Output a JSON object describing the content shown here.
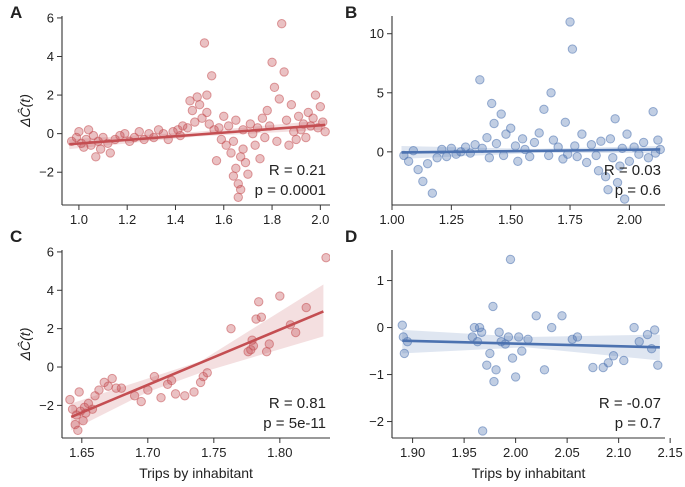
{
  "figure": {
    "ylabel_main": "ΔĈ(t)",
    "xlabel": "Trips by inhabitant",
    "colors": {
      "red": "#c44e52",
      "blue": "#4c72b0",
      "axis": "#333333"
    }
  },
  "chart_data": [
    {
      "panel": "A",
      "type": "scatter",
      "color": "#c44e52",
      "xlim": [
        0.93,
        2.04
      ],
      "ylim": [
        -3.7,
        6.1
      ],
      "xticks": [
        1.0,
        1.2,
        1.4,
        1.6,
        1.8,
        2.0
      ],
      "xtick_labels": [
        "1.0",
        "1.2",
        "1.4",
        "1.6",
        "1.8",
        "2.0"
      ],
      "yticks": [
        -2,
        0,
        2,
        4,
        6
      ],
      "ytick_labels": [
        "−2",
        "0",
        "2",
        "4",
        "6"
      ],
      "ylabel": "ΔĈ(t)",
      "xlabel": "",
      "fit": {
        "x": [
          0.96,
          2.02
        ],
        "y": [
          -0.55,
          0.45
        ]
      },
      "band": {
        "x": [
          0.96,
          1.49,
          2.02
        ],
        "lower": [
          -0.8,
          -0.15,
          0.2
        ],
        "upper": [
          -0.3,
          0.1,
          0.7
        ]
      },
      "stat_r": "R = 0.21",
      "stat_p": "p = 0.0001",
      "points": [
        [
          0.97,
          -0.4
        ],
        [
          0.99,
          -0.2
        ],
        [
          1.0,
          0.1
        ],
        [
          1.01,
          -0.5
        ],
        [
          1.02,
          -0.7
        ],
        [
          1.03,
          -0.3
        ],
        [
          1.04,
          0.2
        ],
        [
          1.05,
          -0.6
        ],
        [
          1.06,
          -0.1
        ],
        [
          1.07,
          -1.2
        ],
        [
          1.08,
          -0.4
        ],
        [
          1.09,
          -0.8
        ],
        [
          1.1,
          -0.2
        ],
        [
          1.12,
          -0.5
        ],
        [
          1.13,
          -1.0
        ],
        [
          1.15,
          -0.3
        ],
        [
          1.17,
          -0.1
        ],
        [
          1.19,
          0.0
        ],
        [
          1.21,
          -0.4
        ],
        [
          1.23,
          -0.2
        ],
        [
          1.25,
          0.1
        ],
        [
          1.27,
          -0.3
        ],
        [
          1.29,
          0.0
        ],
        [
          1.31,
          -0.2
        ],
        [
          1.33,
          0.2
        ],
        [
          1.35,
          0.0
        ],
        [
          1.37,
          -0.3
        ],
        [
          1.39,
          0.1
        ],
        [
          1.41,
          0.2
        ],
        [
          1.42,
          -0.1
        ],
        [
          1.43,
          0.4
        ],
        [
          1.45,
          0.3
        ],
        [
          1.46,
          1.7
        ],
        [
          1.47,
          1.2
        ],
        [
          1.48,
          0.6
        ],
        [
          1.49,
          1.9
        ],
        [
          1.5,
          1.5
        ],
        [
          1.51,
          0.8
        ],
        [
          1.52,
          4.7
        ],
        [
          1.53,
          1.1
        ],
        [
          1.53,
          2.0
        ],
        [
          1.54,
          0.5
        ],
        [
          1.55,
          3.0
        ],
        [
          1.56,
          0.2
        ],
        [
          1.57,
          -1.4
        ],
        [
          1.58,
          0.3
        ],
        [
          1.59,
          -0.3
        ],
        [
          1.6,
          0.9
        ],
        [
          1.61,
          -0.6
        ],
        [
          1.62,
          0.4
        ],
        [
          1.63,
          -1.0
        ],
        [
          1.64,
          -2.2
        ],
        [
          1.64,
          -0.4
        ],
        [
          1.65,
          -1.8
        ],
        [
          1.65,
          0.7
        ],
        [
          1.66,
          -2.6
        ],
        [
          1.66,
          -3.3
        ],
        [
          1.67,
          -1.2
        ],
        [
          1.67,
          -2.9
        ],
        [
          1.68,
          -0.8
        ],
        [
          1.68,
          0.2
        ],
        [
          1.69,
          -1.5
        ],
        [
          1.7,
          -2.1
        ],
        [
          1.71,
          0.5
        ],
        [
          1.72,
          0.0
        ],
        [
          1.73,
          -0.6
        ],
        [
          1.74,
          0.3
        ],
        [
          1.75,
          -1.3
        ],
        [
          1.76,
          0.8
        ],
        [
          1.77,
          -0.2
        ],
        [
          1.78,
          1.2
        ],
        [
          1.79,
          0.4
        ],
        [
          1.8,
          3.7
        ],
        [
          1.81,
          2.4
        ],
        [
          1.82,
          -0.4
        ],
        [
          1.83,
          1.8
        ],
        [
          1.84,
          5.7
        ],
        [
          1.85,
          3.2
        ],
        [
          1.86,
          0.7
        ],
        [
          1.87,
          -0.6
        ],
        [
          1.88,
          1.5
        ],
        [
          1.89,
          0.1
        ],
        [
          1.9,
          -0.3
        ],
        [
          1.91,
          0.9
        ],
        [
          1.92,
          0.2
        ],
        [
          1.93,
          0.5
        ],
        [
          1.94,
          -0.2
        ],
        [
          1.95,
          1.1
        ],
        [
          1.96,
          0.4
        ],
        [
          1.97,
          0.8
        ],
        [
          1.98,
          2.0
        ],
        [
          1.99,
          0.3
        ],
        [
          2.0,
          1.4
        ],
        [
          2.01,
          0.6
        ],
        [
          2.02,
          0.1
        ]
      ]
    },
    {
      "panel": "B",
      "type": "scatter",
      "color": "#4c72b0",
      "xlim": [
        1.0,
        2.15
      ],
      "ylim": [
        -4.5,
        11.5
      ],
      "xticks": [
        1.0,
        1.25,
        1.5,
        1.75,
        2.0
      ],
      "xtick_labels": [
        "1.00",
        "1.25",
        "1.50",
        "1.75",
        "2.00"
      ],
      "yticks": [
        0,
        5,
        10
      ],
      "ytick_labels": [
        "0",
        "5",
        "10"
      ],
      "ylabel": "",
      "xlabel": "",
      "fit": {
        "x": [
          1.04,
          2.13
        ],
        "y": [
          -0.05,
          0.2
        ]
      },
      "band": {
        "x": [
          1.04,
          1.6,
          2.13
        ],
        "lower": [
          -0.6,
          -0.1,
          -0.1
        ],
        "upper": [
          0.5,
          0.25,
          0.5
        ]
      },
      "stat_r": "R = 0.03",
      "stat_p": "p = 0.6",
      "points": [
        [
          1.05,
          -0.3
        ],
        [
          1.07,
          -0.8
        ],
        [
          1.09,
          0.1
        ],
        [
          1.11,
          -1.5
        ],
        [
          1.13,
          -2.5
        ],
        [
          1.15,
          -1.0
        ],
        [
          1.17,
          -3.5
        ],
        [
          1.19,
          -0.5
        ],
        [
          1.21,
          0.2
        ],
        [
          1.23,
          -0.4
        ],
        [
          1.25,
          0.3
        ],
        [
          1.27,
          -0.2
        ],
        [
          1.29,
          0.0
        ],
        [
          1.31,
          0.4
        ],
        [
          1.33,
          -0.1
        ],
        [
          1.35,
          0.6
        ],
        [
          1.37,
          6.1
        ],
        [
          1.38,
          0.3
        ],
        [
          1.4,
          1.2
        ],
        [
          1.41,
          -0.5
        ],
        [
          1.42,
          4.1
        ],
        [
          1.43,
          2.4
        ],
        [
          1.44,
          0.7
        ],
        [
          1.46,
          3.2
        ],
        [
          1.47,
          -0.3
        ],
        [
          1.48,
          1.5
        ],
        [
          1.5,
          2.0
        ],
        [
          1.52,
          0.5
        ],
        [
          1.53,
          -0.8
        ],
        [
          1.55,
          1.1
        ],
        [
          1.56,
          0.2
        ],
        [
          1.58,
          -0.4
        ],
        [
          1.6,
          0.8
        ],
        [
          1.62,
          1.6
        ],
        [
          1.64,
          3.6
        ],
        [
          1.66,
          -0.3
        ],
        [
          1.67,
          5.0
        ],
        [
          1.68,
          1.0
        ],
        [
          1.7,
          0.4
        ],
        [
          1.72,
          -0.6
        ],
        [
          1.73,
          2.5
        ],
        [
          1.74,
          -0.2
        ],
        [
          1.75,
          11.0
        ],
        [
          1.76,
          8.7
        ],
        [
          1.77,
          0.5
        ],
        [
          1.78,
          -0.4
        ],
        [
          1.8,
          1.5
        ],
        [
          1.82,
          -0.9
        ],
        [
          1.84,
          0.6
        ],
        [
          1.86,
          -0.3
        ],
        [
          1.87,
          -1.6
        ],
        [
          1.88,
          0.9
        ],
        [
          1.9,
          -2.1
        ],
        [
          1.91,
          -3.2
        ],
        [
          1.92,
          1.1
        ],
        [
          1.93,
          -0.5
        ],
        [
          1.94,
          2.8
        ],
        [
          1.95,
          -2.6
        ],
        [
          1.96,
          -1.2
        ],
        [
          1.97,
          0.3
        ],
        [
          1.98,
          -4.0
        ],
        [
          1.99,
          1.5
        ],
        [
          2.0,
          -0.8
        ],
        [
          2.02,
          0.4
        ],
        [
          2.04,
          -0.2
        ],
        [
          2.06,
          0.8
        ],
        [
          2.08,
          -0.5
        ],
        [
          2.1,
          3.4
        ],
        [
          2.11,
          -0.1
        ],
        [
          2.12,
          1.0
        ],
        [
          2.13,
          0.2
        ]
      ]
    },
    {
      "panel": "C",
      "type": "scatter",
      "color": "#c44e52",
      "xlim": [
        1.635,
        1.838
      ],
      "ylim": [
        -3.7,
        6.1
      ],
      "xticks": [
        1.65,
        1.7,
        1.75,
        1.8
      ],
      "xtick_labels": [
        "1.65",
        "1.70",
        "1.75",
        "1.80"
      ],
      "yticks": [
        -2,
        0,
        2,
        4,
        6
      ],
      "ytick_labels": [
        "−2",
        "0",
        "2",
        "4",
        "6"
      ],
      "ylabel": "ΔĈ(t)",
      "xlabel": "Trips by inhabitant",
      "fit": {
        "x": [
          1.642,
          1.833
        ],
        "y": [
          -2.6,
          2.9
        ]
      },
      "band": {
        "x": [
          1.642,
          1.7,
          1.74,
          1.833
        ],
        "lower": [
          -3.3,
          -1.3,
          -0.3,
          1.6
        ],
        "upper": [
          -1.9,
          -0.6,
          0.3,
          4.3
        ]
      },
      "stat_r": "R = 0.81",
      "stat_p": "p = 5e-11",
      "points": [
        [
          1.641,
          -1.7
        ],
        [
          1.643,
          -2.2
        ],
        [
          1.645,
          -3.0
        ],
        [
          1.646,
          -2.5
        ],
        [
          1.647,
          -3.3
        ],
        [
          1.648,
          -1.3
        ],
        [
          1.649,
          -2.3
        ],
        [
          1.651,
          -2.8
        ],
        [
          1.652,
          -2.1
        ],
        [
          1.653,
          -2.4
        ],
        [
          1.655,
          -1.9
        ],
        [
          1.658,
          -2.2
        ],
        [
          1.66,
          -1.5
        ],
        [
          1.663,
          -1.2
        ],
        [
          1.667,
          -0.8
        ],
        [
          1.67,
          -1.0
        ],
        [
          1.673,
          -0.6
        ],
        [
          1.676,
          -1.1
        ],
        [
          1.68,
          -1.1
        ],
        [
          1.69,
          -1.5
        ],
        [
          1.695,
          -1.8
        ],
        [
          1.7,
          -1.2
        ],
        [
          1.705,
          -0.5
        ],
        [
          1.71,
          -1.6
        ],
        [
          1.715,
          -0.9
        ],
        [
          1.718,
          -0.7
        ],
        [
          1.721,
          -1.4
        ],
        [
          1.728,
          -1.5
        ],
        [
          1.735,
          -1.3
        ],
        [
          1.74,
          -0.8
        ],
        [
          1.742,
          -0.5
        ],
        [
          1.745,
          -0.3
        ],
        [
          1.763,
          2.0
        ],
        [
          1.776,
          0.8
        ],
        [
          1.778,
          0.9
        ],
        [
          1.779,
          1.4
        ],
        [
          1.78,
          1.1
        ],
        [
          1.782,
          2.5
        ],
        [
          1.784,
          3.4
        ],
        [
          1.786,
          2.6
        ],
        [
          1.79,
          0.8
        ],
        [
          1.792,
          1.2
        ],
        [
          1.8,
          3.7
        ],
        [
          1.808,
          2.2
        ],
        [
          1.812,
          1.8
        ],
        [
          1.82,
          3.1
        ],
        [
          1.835,
          5.7
        ]
      ]
    },
    {
      "panel": "D",
      "type": "scatter",
      "color": "#4c72b0",
      "xlim": [
        1.88,
        2.145
      ],
      "ylim": [
        -2.35,
        1.65
      ],
      "xticks": [
        1.9,
        1.95,
        2.0,
        2.05,
        2.1,
        2.15
      ],
      "xtick_labels": [
        "1.90",
        "1.95",
        "2.00",
        "2.05",
        "2.10",
        "2.15"
      ],
      "yticks": [
        -2,
        -1,
        0,
        1
      ],
      "ytick_labels": [
        "−2",
        "−1",
        "0",
        "1"
      ],
      "ylabel": "",
      "xlabel": "Trips by inhabitant",
      "fit": {
        "x": [
          1.89,
          2.14
        ],
        "y": [
          -0.28,
          -0.42
        ]
      },
      "band": {
        "x": [
          1.89,
          2.01,
          2.14
        ],
        "lower": [
          -0.55,
          -0.42,
          -0.7
        ],
        "upper": [
          -0.05,
          -0.2,
          -0.15
        ]
      },
      "stat_r": "R = -0.07",
      "stat_p": "p = 0.7",
      "points": [
        [
          1.89,
          0.05
        ],
        [
          1.891,
          -0.2
        ],
        [
          1.892,
          -0.55
        ],
        [
          1.895,
          -0.3
        ],
        [
          1.958,
          -0.2
        ],
        [
          1.96,
          0.0
        ],
        [
          1.963,
          -0.3
        ],
        [
          1.965,
          0.0
        ],
        [
          1.967,
          -0.1
        ],
        [
          1.968,
          -2.2
        ],
        [
          1.972,
          -0.8
        ],
        [
          1.975,
          -0.55
        ],
        [
          1.978,
          0.45
        ],
        [
          1.979,
          -1.15
        ],
        [
          1.981,
          -0.9
        ],
        [
          1.984,
          -0.1
        ],
        [
          1.986,
          -0.3
        ],
        [
          1.99,
          -0.35
        ],
        [
          1.993,
          -0.2
        ],
        [
          1.995,
          1.45
        ],
        [
          1.997,
          -0.65
        ],
        [
          2.0,
          -1.05
        ],
        [
          2.003,
          -0.2
        ],
        [
          2.006,
          -0.5
        ],
        [
          2.012,
          -0.25
        ],
        [
          2.02,
          0.25
        ],
        [
          2.028,
          -0.9
        ],
        [
          2.035,
          0.0
        ],
        [
          2.045,
          0.25
        ],
        [
          2.055,
          -0.25
        ],
        [
          2.06,
          -0.2
        ],
        [
          2.075,
          -0.85
        ],
        [
          2.085,
          -0.85
        ],
        [
          2.09,
          -0.75
        ],
        [
          2.095,
          -0.6
        ],
        [
          2.105,
          -0.7
        ],
        [
          2.115,
          0.0
        ],
        [
          2.12,
          -0.3
        ],
        [
          2.128,
          -0.15
        ],
        [
          2.132,
          -0.45
        ],
        [
          2.135,
          -0.05
        ],
        [
          2.138,
          -0.8
        ]
      ]
    }
  ]
}
